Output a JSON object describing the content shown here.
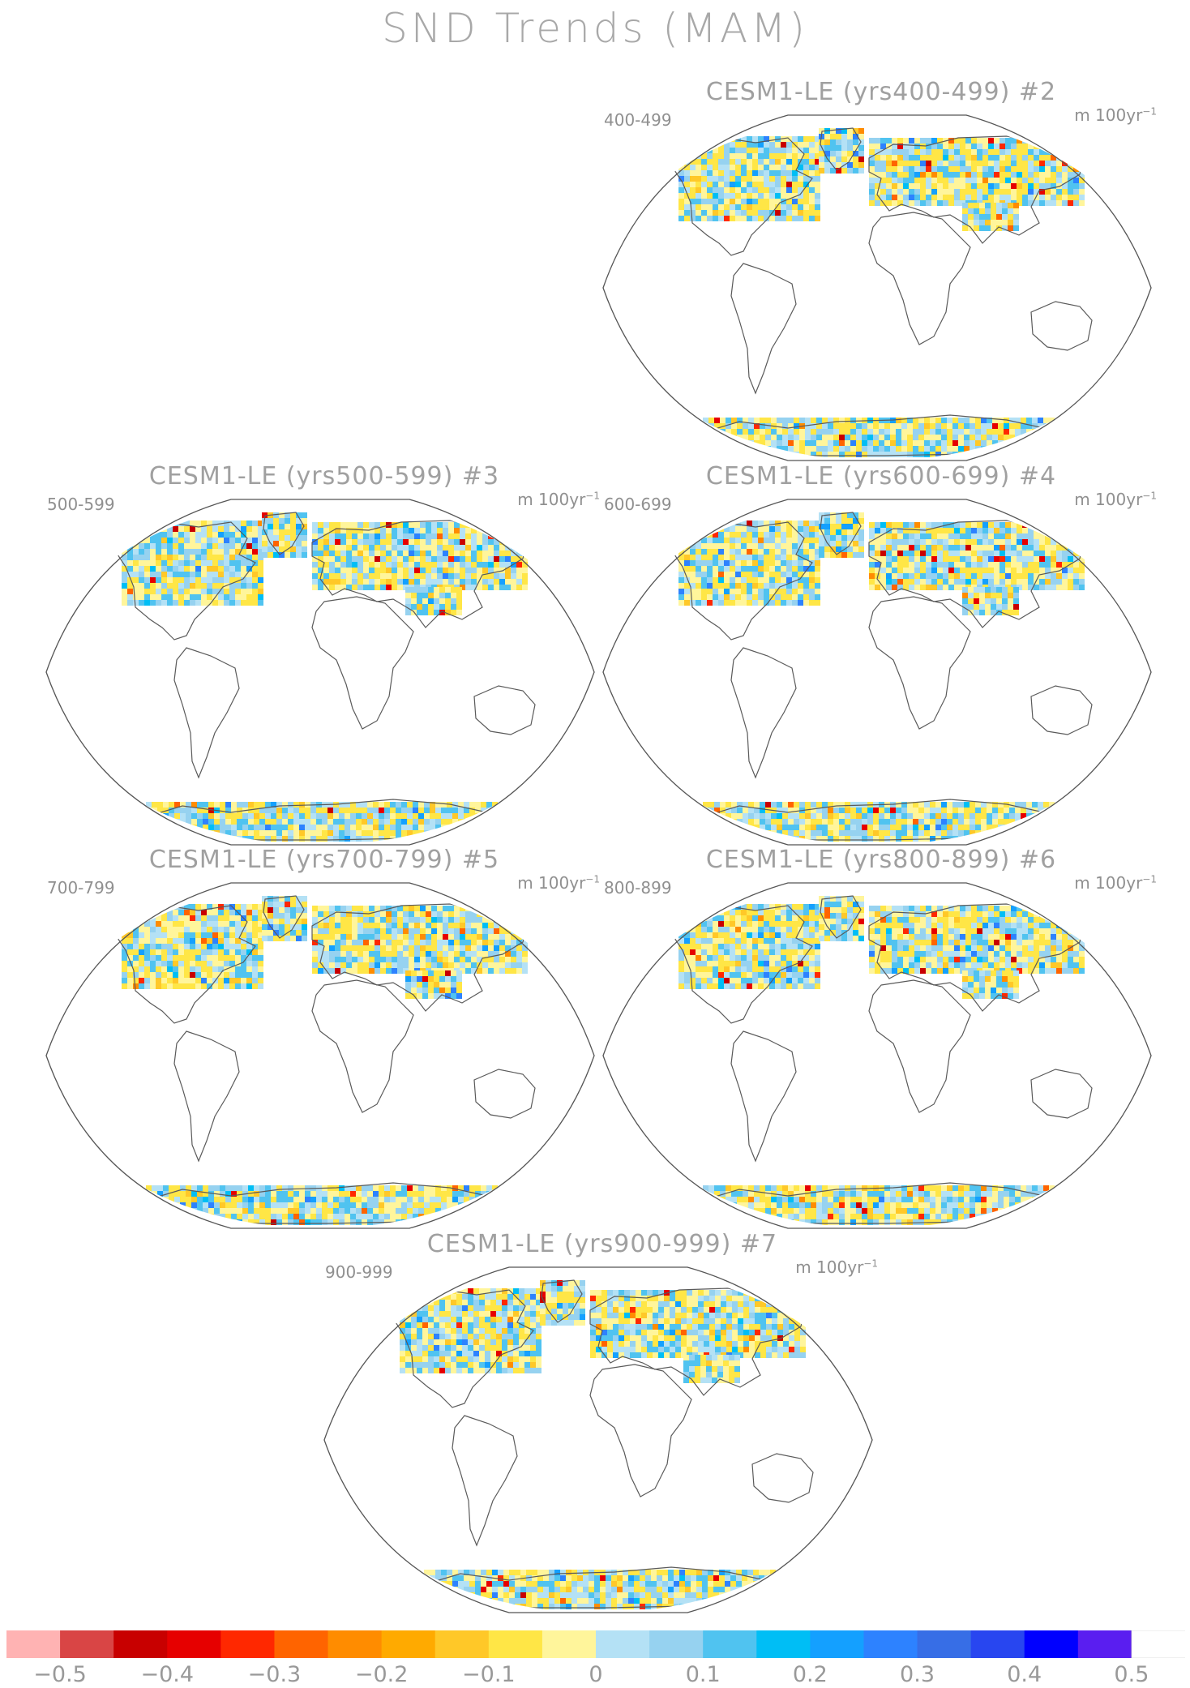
{
  "figure": {
    "title": "SND Trends (MAM)"
  },
  "panels": [
    {
      "id": "p2",
      "title": "CESM1-LE (yrs400-499) #2",
      "period": "400-499",
      "units_main": "m 100yr",
      "units_sup": "−1",
      "pattern_seed": 2
    },
    {
      "id": "p3",
      "title": "CESM1-LE (yrs500-599) #3",
      "period": "500-599",
      "units_main": "m 100yr",
      "units_sup": "−1",
      "pattern_seed": 3
    },
    {
      "id": "p4",
      "title": "CESM1-LE (yrs600-699) #4",
      "period": "600-699",
      "units_main": "m 100yr",
      "units_sup": "−1",
      "pattern_seed": 4
    },
    {
      "id": "p5",
      "title": "CESM1-LE (yrs700-799) #5",
      "period": "700-799",
      "units_main": "m 100yr",
      "units_sup": "−1",
      "pattern_seed": 5
    },
    {
      "id": "p6",
      "title": "CESM1-LE (yrs800-899) #6",
      "period": "800-899",
      "units_main": "m 100yr",
      "units_sup": "−1",
      "pattern_seed": 6
    },
    {
      "id": "p7",
      "title": "CESM1-LE (yrs900-999) #7",
      "period": "900-999",
      "units_main": "m 100yr",
      "units_sup": "−1",
      "pattern_seed": 7
    }
  ],
  "colorbar": {
    "colors": [
      "#ffb3b3",
      "#d94545",
      "#c80000",
      "#e60000",
      "#ff2800",
      "#ff6400",
      "#ff8c00",
      "#ffaa00",
      "#ffc828",
      "#ffe646",
      "#fff59b",
      "#b4e1f5",
      "#96d2f0",
      "#50c3f0",
      "#00bef5",
      "#14a0ff",
      "#2d82ff",
      "#376ee6",
      "#2846f0",
      "#0000ff",
      "#5a1ef0",
      "#ffffff"
    ],
    "labels": [
      "−0.5",
      "−0.4",
      "−0.3",
      "−0.2",
      "−0.1",
      "0",
      "0.1",
      "0.2",
      "0.3",
      "0.4",
      "0.5"
    ]
  }
}
